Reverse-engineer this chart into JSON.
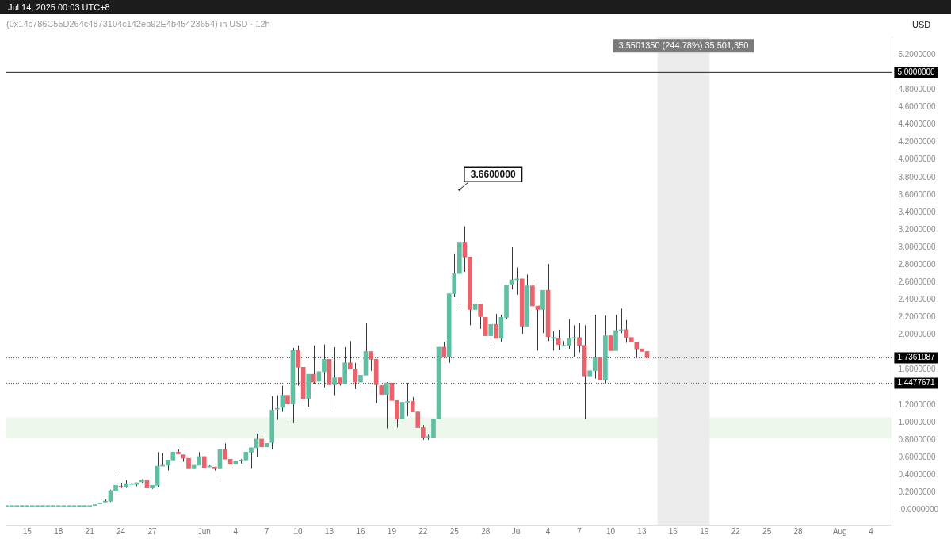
{
  "chart_data": {
    "type": "candlestick",
    "title": "(0x14c786C55D264c4873104c142eb92E4b45423654) in USD · 12h",
    "ylabel": "USD",
    "annotations": [
      "Jul 14, 2025 00:03 UTC+8",
      {
        "text": "3.6600000",
        "x": "2025-06-25T12:00",
        "y": 3.66
      },
      "3.5501350 (244.78%) 35,501,350"
    ],
    "x": [
      "2025-05-13T00:00",
      "2025-05-13T12:00",
      "2025-05-14T00:00",
      "2025-05-14T12:00",
      "2025-05-15T00:00",
      "2025-05-15T12:00",
      "2025-05-16T00:00",
      "2025-05-16T12:00",
      "2025-05-17T00:00",
      "2025-05-17T12:00",
      "2025-05-18T00:00",
      "2025-05-18T12:00",
      "2025-05-19T00:00",
      "2025-05-19T12:00",
      "2025-05-20T00:00",
      "2025-05-20T12:00",
      "2025-05-21T00:00",
      "2025-05-21T12:00",
      "2025-05-22T00:00",
      "2025-05-22T12:00",
      "2025-05-23T00:00",
      "2025-05-23T12:00",
      "2025-05-24T00:00",
      "2025-05-24T12:00",
      "2025-05-25T00:00",
      "2025-05-25T12:00",
      "2025-05-26T00:00",
      "2025-05-26T12:00",
      "2025-05-27T00:00",
      "2025-05-27T12:00",
      "2025-05-28T00:00",
      "2025-05-28T12:00",
      "2025-05-29T00:00",
      "2025-05-29T12:00",
      "2025-05-30T00:00",
      "2025-05-30T12:00",
      "2025-05-31T00:00",
      "2025-05-31T12:00",
      "2025-06-01T00:00",
      "2025-06-01T12:00",
      "2025-06-02T00:00",
      "2025-06-02T12:00",
      "2025-06-03T00:00",
      "2025-06-03T12:00",
      "2025-06-04T00:00",
      "2025-06-04T12:00",
      "2025-06-05T00:00",
      "2025-06-05T12:00",
      "2025-06-06T00:00",
      "2025-06-06T12:00",
      "2025-06-07T00:00",
      "2025-06-07T12:00",
      "2025-06-08T00:00",
      "2025-06-08T12:00",
      "2025-06-09T00:00",
      "2025-06-09T12:00",
      "2025-06-10T00:00",
      "2025-06-10T12:00",
      "2025-06-11T00:00",
      "2025-06-11T12:00",
      "2025-06-12T00:00",
      "2025-06-12T12:00",
      "2025-06-13T00:00",
      "2025-06-13T12:00",
      "2025-06-14T00:00",
      "2025-06-14T12:00",
      "2025-06-15T00:00",
      "2025-06-15T12:00",
      "2025-06-16T00:00",
      "2025-06-16T12:00",
      "2025-06-17T00:00",
      "2025-06-17T12:00",
      "2025-06-18T00:00",
      "2025-06-18T12:00",
      "2025-06-19T00:00",
      "2025-06-19T12:00",
      "2025-06-20T00:00",
      "2025-06-20T12:00",
      "2025-06-21T00:00",
      "2025-06-21T12:00",
      "2025-06-22T00:00",
      "2025-06-22T12:00",
      "2025-06-23T00:00",
      "2025-06-23T12:00",
      "2025-06-24T00:00",
      "2025-06-24T12:00",
      "2025-06-25T00:00",
      "2025-06-25T12:00",
      "2025-06-26T00:00",
      "2025-06-26T12:00",
      "2025-06-27T00:00",
      "2025-06-27T12:00",
      "2025-06-28T00:00",
      "2025-06-28T12:00",
      "2025-06-29T00:00",
      "2025-06-29T12:00",
      "2025-06-30T00:00",
      "2025-06-30T12:00",
      "2025-07-01T00:00",
      "2025-07-01T12:00",
      "2025-07-02T00:00",
      "2025-07-02T12:00",
      "2025-07-03T00:00",
      "2025-07-03T12:00",
      "2025-07-04T00:00",
      "2025-07-04T12:00",
      "2025-07-05T00:00",
      "2025-07-05T12:00",
      "2025-07-06T00:00",
      "2025-07-06T12:00",
      "2025-07-07T00:00",
      "2025-07-07T12:00",
      "2025-07-08T00:00",
      "2025-07-08T12:00",
      "2025-07-09T00:00",
      "2025-07-09T12:00",
      "2025-07-10T00:00",
      "2025-07-10T12:00",
      "2025-07-11T00:00",
      "2025-07-11T12:00",
      "2025-07-12T00:00",
      "2025-07-12T12:00",
      "2025-07-13T00:00",
      "2025-07-13T12:00"
    ],
    "ohlc": [
      [
        0.05,
        0.05,
        0.05,
        0.05
      ],
      [
        0.05,
        0.05,
        0.05,
        0.05
      ],
      [
        0.05,
        0.05,
        0.05,
        0.05
      ],
      [
        0.05,
        0.05,
        0.05,
        0.05
      ],
      [
        0.05,
        0.05,
        0.05,
        0.05
      ],
      [
        0.05,
        0.05,
        0.05,
        0.05
      ],
      [
        0.05,
        0.05,
        0.05,
        0.05
      ],
      [
        0.05,
        0.05,
        0.05,
        0.05
      ],
      [
        0.05,
        0.05,
        0.05,
        0.05
      ],
      [
        0.05,
        0.05,
        0.05,
        0.05
      ],
      [
        0.05,
        0.05,
        0.05,
        0.05
      ],
      [
        0.05,
        0.05,
        0.05,
        0.05
      ],
      [
        0.05,
        0.05,
        0.05,
        0.05
      ],
      [
        0.05,
        0.05,
        0.05,
        0.05
      ],
      [
        0.05,
        0.05,
        0.05,
        0.05
      ],
      [
        0.05,
        0.05,
        0.05,
        0.05
      ],
      [
        0.05,
        0.05,
        0.05,
        0.05
      ],
      [
        0.05,
        0.06,
        0.05,
        0.06
      ],
      [
        0.07,
        0.08,
        0.07,
        0.08
      ],
      [
        0.09,
        0.12,
        0.09,
        0.1
      ],
      [
        0.1,
        0.23,
        0.09,
        0.22
      ],
      [
        0.22,
        0.4,
        0.21,
        0.28
      ],
      [
        0.27,
        0.31,
        0.25,
        0.26
      ],
      [
        0.26,
        0.34,
        0.25,
        0.3
      ],
      [
        0.3,
        0.31,
        0.29,
        0.3
      ],
      [
        0.29,
        0.31,
        0.27,
        0.31
      ],
      [
        0.32,
        0.35,
        0.31,
        0.34
      ],
      [
        0.34,
        0.35,
        0.24,
        0.25
      ],
      [
        0.25,
        0.28,
        0.24,
        0.28
      ],
      [
        0.28,
        0.66,
        0.26,
        0.5
      ],
      [
        0.5,
        0.65,
        0.5,
        0.51
      ],
      [
        0.51,
        0.57,
        0.45,
        0.57
      ],
      [
        0.57,
        0.66,
        0.57,
        0.66
      ],
      [
        0.66,
        0.69,
        0.64,
        0.64
      ],
      [
        0.63,
        0.63,
        0.55,
        0.59
      ],
      [
        0.59,
        0.59,
        0.47,
        0.47
      ],
      [
        0.47,
        0.51,
        0.47,
        0.51
      ],
      [
        0.51,
        0.66,
        0.51,
        0.61
      ],
      [
        0.61,
        0.61,
        0.48,
        0.48
      ],
      [
        0.5,
        0.51,
        0.49,
        0.5
      ],
      [
        0.49,
        0.49,
        0.45,
        0.47
      ],
      [
        0.47,
        0.69,
        0.35,
        0.69
      ],
      [
        0.69,
        0.76,
        0.58,
        0.58
      ],
      [
        0.58,
        0.58,
        0.48,
        0.52
      ],
      [
        0.52,
        0.56,
        0.52,
        0.56
      ],
      [
        0.57,
        0.58,
        0.53,
        0.57
      ],
      [
        0.57,
        0.66,
        0.57,
        0.66
      ],
      [
        0.66,
        0.71,
        0.47,
        0.71
      ],
      [
        0.71,
        0.87,
        0.61,
        0.81
      ],
      [
        0.81,
        0.85,
        0.72,
        0.72
      ],
      [
        0.72,
        0.76,
        0.72,
        0.76
      ],
      [
        0.77,
        1.3,
        0.69,
        1.14
      ],
      [
        1.16,
        1.31,
        1.03,
        1.16
      ],
      [
        1.17,
        1.42,
        1.12,
        1.31
      ],
      [
        1.31,
        1.31,
        1.04,
        1.21
      ],
      [
        1.21,
        1.85,
        0.99,
        1.82
      ],
      [
        1.82,
        1.88,
        1.42,
        1.63
      ],
      [
        1.63,
        1.63,
        1.21,
        1.27
      ],
      [
        1.27,
        1.55,
        1.18,
        1.55
      ],
      [
        1.55,
        1.88,
        1.44,
        1.46
      ],
      [
        1.47,
        1.66,
        1.47,
        1.58
      ],
      [
        1.58,
        1.89,
        1.4,
        1.72
      ],
      [
        1.72,
        1.82,
        1.12,
        1.43
      ],
      [
        1.43,
        1.86,
        1.31,
        1.51
      ],
      [
        1.51,
        1.51,
        1.42,
        1.44
      ],
      [
        1.44,
        1.86,
        1.44,
        1.68
      ],
      [
        1.68,
        1.93,
        1.61,
        1.61
      ],
      [
        1.61,
        1.68,
        1.38,
        1.46
      ],
      [
        1.46,
        1.54,
        1.4,
        1.54
      ],
      [
        1.54,
        2.13,
        1.54,
        1.81
      ],
      [
        1.81,
        1.81,
        1.59,
        1.72
      ],
      [
        1.72,
        1.72,
        1.22,
        1.43
      ],
      [
        1.42,
        1.42,
        1.32,
        1.32
      ],
      [
        1.32,
        1.46,
        0.93,
        1.45
      ],
      [
        1.45,
        1.45,
        1.25,
        1.25
      ],
      [
        1.25,
        1.25,
        0.94,
        1.04
      ],
      [
        1.04,
        1.23,
        1.04,
        1.23
      ],
      [
        1.24,
        1.45,
        1.07,
        1.24
      ],
      [
        1.24,
        1.29,
        1.12,
        1.12
      ],
      [
        1.12,
        1.12,
        0.94,
        0.94
      ],
      [
        0.94,
        0.97,
        0.8,
        0.83
      ],
      [
        0.84,
        0.86,
        0.8,
        0.84
      ],
      [
        0.83,
        1.04,
        0.83,
        1.04
      ],
      [
        1.04,
        1.86,
        1.04,
        1.86
      ],
      [
        1.86,
        1.92,
        1.75,
        1.75
      ],
      [
        1.75,
        2.47,
        1.68,
        2.47
      ],
      [
        2.47,
        2.93,
        2.43,
        2.7
      ],
      [
        2.7,
        3.66,
        2.34,
        3.06
      ],
      [
        3.06,
        3.24,
        2.72,
        2.89
      ],
      [
        2.89,
        2.89,
        2.11,
        2.29
      ],
      [
        2.29,
        2.38,
        2.29,
        2.35
      ],
      [
        2.35,
        2.35,
        2.07,
        2.21
      ],
      [
        2.2,
        2.2,
        1.99,
        1.99
      ],
      [
        1.99,
        2.12,
        1.85,
        2.12
      ],
      [
        2.12,
        2.24,
        1.96,
        1.96
      ],
      [
        1.96,
        2.23,
        1.92,
        2.2
      ],
      [
        2.2,
        2.57,
        2.18,
        2.57
      ],
      [
        2.58,
        3.0,
        2.52,
        2.63
      ],
      [
        2.64,
        2.77,
        2.46,
        2.64
      ],
      [
        2.64,
        2.64,
        2.01,
        2.1
      ],
      [
        2.1,
        2.69,
        2.1,
        2.56
      ],
      [
        2.56,
        2.6,
        2.33,
        2.33
      ],
      [
        2.33,
        2.33,
        1.82,
        2.29
      ],
      [
        2.29,
        2.51,
        2.02,
        2.51
      ],
      [
        2.51,
        2.81,
        1.93,
        1.98
      ],
      [
        1.97,
        2.04,
        1.82,
        1.97
      ],
      [
        1.96,
        2.06,
        1.83,
        1.89
      ],
      [
        1.88,
        1.93,
        1.88,
        1.88
      ],
      [
        1.88,
        2.18,
        1.84,
        1.96
      ],
      [
        1.97,
        2.11,
        1.75,
        1.97
      ],
      [
        1.97,
        2.13,
        1.8,
        1.88
      ],
      [
        1.88,
        2.11,
        1.04,
        1.53
      ],
      [
        1.53,
        1.59,
        1.48,
        1.59
      ],
      [
        1.59,
        2.23,
        1.5,
        1.74
      ],
      [
        1.74,
        1.74,
        1.49,
        1.49
      ],
      [
        1.49,
        2.22,
        1.45,
        1.99
      ],
      [
        1.99,
        1.99,
        1.82,
        1.82
      ],
      [
        1.82,
        2.23,
        1.82,
        2.05
      ],
      [
        2.06,
        2.3,
        2.02,
        2.06
      ],
      [
        2.06,
        2.17,
        1.91,
        1.97
      ],
      [
        1.97,
        1.97,
        1.92,
        1.92
      ],
      [
        1.92,
        1.92,
        1.74,
        1.84
      ],
      [
        1.84,
        1.84,
        1.81,
        1.81
      ],
      [
        1.81,
        1.81,
        1.65,
        1.74
      ]
    ],
    "xlim": [
      "2025-05-13",
      "2025-08-06"
    ],
    "xticks": [
      {
        "value": "2025-05-15",
        "label": "15"
      },
      {
        "value": "2025-05-18",
        "label": "18"
      },
      {
        "value": "2025-05-21",
        "label": "21"
      },
      {
        "value": "2025-05-24",
        "label": "24"
      },
      {
        "value": "2025-05-27",
        "label": "27"
      },
      {
        "value": "2025-06-01",
        "label": "Jun"
      },
      {
        "value": "2025-06-04",
        "label": "4"
      },
      {
        "value": "2025-06-07",
        "label": "7"
      },
      {
        "value": "2025-06-10",
        "label": "10"
      },
      {
        "value": "2025-06-13",
        "label": "13"
      },
      {
        "value": "2025-06-16",
        "label": "16"
      },
      {
        "value": "2025-06-19",
        "label": "19"
      },
      {
        "value": "2025-06-22",
        "label": "22"
      },
      {
        "value": "2025-06-25",
        "label": "25"
      },
      {
        "value": "2025-06-28",
        "label": "28"
      },
      {
        "value": "2025-07-01",
        "label": "Jul"
      },
      {
        "value": "2025-07-04",
        "label": "4"
      },
      {
        "value": "2025-07-07",
        "label": "7"
      },
      {
        "value": "2025-07-10",
        "label": "10"
      },
      {
        "value": "2025-07-13",
        "label": "13"
      },
      {
        "value": "2025-07-16",
        "label": "16"
      },
      {
        "value": "2025-07-19",
        "label": "19"
      },
      {
        "value": "2025-07-22",
        "label": "22"
      },
      {
        "value": "2025-07-25",
        "label": "25"
      },
      {
        "value": "2025-07-28",
        "label": "28"
      },
      {
        "value": "2025-08-01",
        "label": "Aug"
      },
      {
        "value": "2025-08-04",
        "label": "4"
      }
    ],
    "ylim": [
      -0.17,
      5.4
    ],
    "yticks": [
      {
        "value": 0,
        "label": "-0.0000000"
      },
      {
        "value": 0.2,
        "label": "0.2000000"
      },
      {
        "value": 0.4,
        "label": "0.4000000"
      },
      {
        "value": 0.6,
        "label": "0.6000000"
      },
      {
        "value": 0.8,
        "label": "0.8000000"
      },
      {
        "value": 1,
        "label": "1.0000000"
      },
      {
        "value": 1.2,
        "label": "1.2000000"
      },
      {
        "value": 1.6,
        "label": "1.6000000"
      },
      {
        "value": 2,
        "label": "2.0000000"
      },
      {
        "value": 2.2,
        "label": "2.2000000"
      },
      {
        "value": 2.4,
        "label": "2.4000000"
      },
      {
        "value": 2.6,
        "label": "2.6000000"
      },
      {
        "value": 2.8,
        "label": "2.8000000"
      },
      {
        "value": 3,
        "label": "3.0000000"
      },
      {
        "value": 3.2,
        "label": "3.2000000"
      },
      {
        "value": 3.4,
        "label": "3.4000000"
      },
      {
        "value": 3.6,
        "label": "3.6000000"
      },
      {
        "value": 3.8,
        "label": "3.8000000"
      },
      {
        "value": 4,
        "label": "4.0000000"
      },
      {
        "value": 4.2,
        "label": "4.2000000"
      },
      {
        "value": 4.4,
        "label": "4.4000000"
      },
      {
        "value": 4.6,
        "label": "4.6000000"
      },
      {
        "value": 4.8,
        "label": "4.8000000"
      },
      {
        "value": 5,
        "label": null
      },
      {
        "value": 5.2,
        "label": "5.2000000"
      }
    ],
    "ref_lines": [
      {
        "axis": "y",
        "value": 5.0,
        "label": "5.0000000",
        "color": "#222222",
        "line_style": "solid"
      },
      {
        "axis": "y",
        "value": 1.7361087,
        "label": "1.7361087",
        "color": "#555555",
        "line_style": "dotted"
      },
      {
        "axis": "y",
        "value": 1.4477671,
        "label": "1.4477671",
        "color": "#555555",
        "line_style": "dotted"
      }
    ],
    "bands": [
      {
        "axis": "y",
        "from": 0.82,
        "to": 1.06,
        "color": "#eef7ec"
      },
      {
        "axis": "x",
        "from": "2025-07-14T12:00",
        "to": "2025-07-19T12:00",
        "color": "#ebebeb"
      }
    ]
  }
}
